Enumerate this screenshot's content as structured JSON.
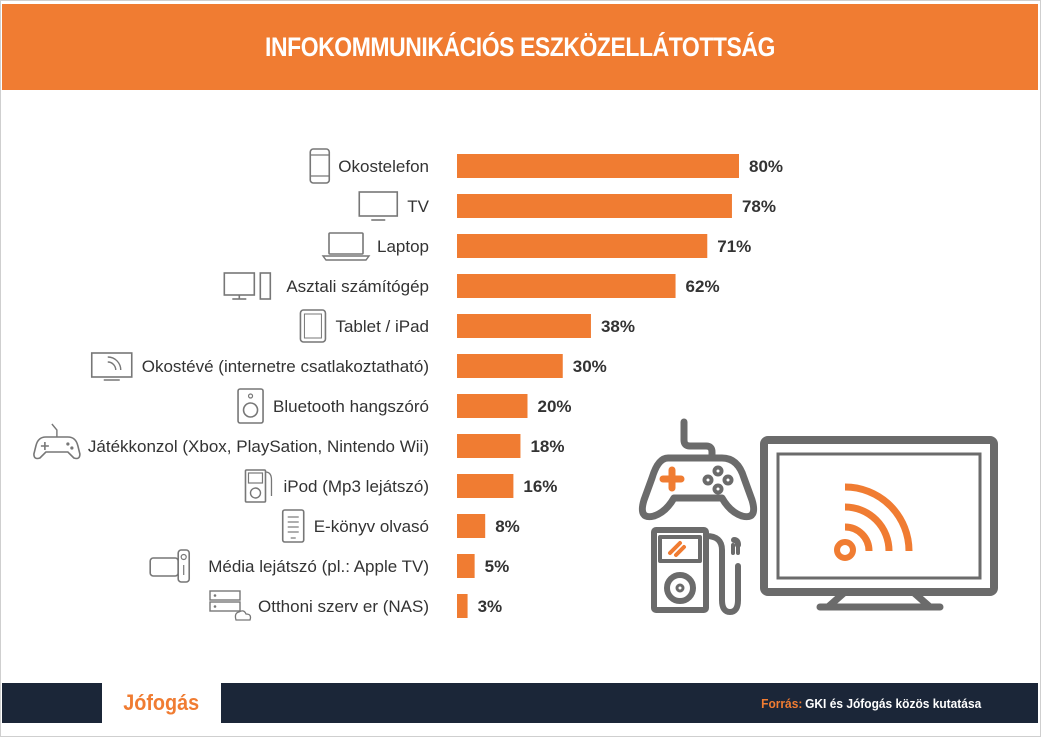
{
  "header": {
    "title": "INFOKOMMUNIKÁCIÓS ESZKÖZELLÁTOTTSÁG"
  },
  "footer": {
    "logo": "Jófogás",
    "source_label": "Forrás:",
    "source_text": "GKI és Jófogás közös kutatása"
  },
  "colors": {
    "accent": "#f07c32",
    "footer_bg": "#1b2638",
    "icon_gray": "#777777"
  },
  "chart_data": {
    "type": "bar",
    "orientation": "horizontal",
    "title": "INFOKOMMUNIKÁCIÓS ESZKÖZELLÁTOTTSÁG",
    "categories": [
      "Okostelefon",
      "TV",
      "Laptop",
      "Asztali számítógép",
      "Tablet / iPad",
      "Okostévé (internetre csatlakoztatható)",
      "Bluetooth hangszóró",
      "Játékkonzol (Xbox, PlaySation, Nintendo Wii)",
      "iPod (Mp3 lejátszó)",
      "E-könyv olvasó",
      "Média lejátszó (pl.: Apple TV)",
      "Otthoni szerv er (NAS)"
    ],
    "values": [
      80,
      78,
      71,
      62,
      38,
      30,
      20,
      18,
      16,
      8,
      5,
      3
    ],
    "value_labels": [
      "80%",
      "78%",
      "71%",
      "62%",
      "38%",
      "30%",
      "20%",
      "18%",
      "16%",
      "8%",
      "5%",
      "3%"
    ],
    "icons": [
      "smartphone-icon",
      "tv-icon",
      "laptop-icon",
      "desktop-computer-icon",
      "tablet-icon",
      "smart-tv-icon",
      "bluetooth-speaker-icon",
      "game-controller-icon",
      "ipod-icon",
      "ebook-reader-icon",
      "media-player-icon",
      "nas-server-icon"
    ],
    "xlim": [
      0,
      100
    ],
    "grid": false,
    "legend": "none"
  }
}
